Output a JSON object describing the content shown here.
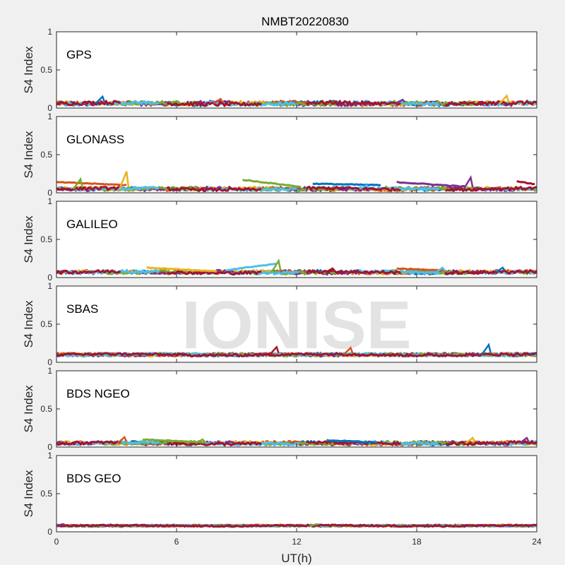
{
  "figure": {
    "title": "NMBT20220830",
    "xlabel": "UT(h)",
    "watermark": "IONISE"
  },
  "colors": {
    "background": "#f0f0f0",
    "axes_bg": "#ffffff",
    "axis_line": "#262626",
    "watermark": "#e3e3e3",
    "series": [
      "#0072bd",
      "#d95319",
      "#edb120",
      "#7e2f8e",
      "#77ac30",
      "#4dbeee",
      "#a2142f"
    ]
  },
  "chart_data": [
    {
      "type": "scatter",
      "panel": "GPS",
      "ylabel": "S4 Index",
      "xlim": [
        0,
        24
      ],
      "ylim": [
        0,
        1
      ],
      "xticks": [
        0,
        6,
        12,
        18,
        24
      ],
      "yticks": [
        0,
        0.5,
        1
      ],
      "baseline": 0.06,
      "spread": 0.03,
      "spikes": [
        [
          2.3,
          0.15
        ],
        [
          8.2,
          0.12
        ],
        [
          22.5,
          0.16
        ],
        [
          17.3,
          0.11
        ]
      ],
      "arcs": []
    },
    {
      "type": "scatter",
      "panel": "GLONASS",
      "ylabel": "S4 Index",
      "xlim": [
        0,
        24
      ],
      "ylim": [
        0,
        1
      ],
      "xticks": [
        0,
        6,
        12,
        18,
        24
      ],
      "yticks": [
        0,
        0.5,
        1
      ],
      "baseline": 0.05,
      "spread": 0.025,
      "spikes": [
        [
          3.5,
          0.28
        ],
        [
          20.7,
          0.2
        ],
        [
          1.2,
          0.18
        ],
        [
          15.5,
          0.1
        ]
      ],
      "arcs": [
        [
          0.0,
          3.6,
          0.14,
          0.1
        ],
        [
          9.3,
          12.2,
          0.17,
          0.08
        ],
        [
          12.8,
          16.2,
          0.12,
          0.1
        ],
        [
          17.0,
          20.5,
          0.14,
          0.08
        ],
        [
          23.0,
          24.0,
          0.15,
          0.11
        ]
      ]
    },
    {
      "type": "scatter",
      "panel": "GALILEO",
      "ylabel": "S4 Index",
      "xlim": [
        0,
        24
      ],
      "ylim": [
        0,
        1
      ],
      "xticks": [
        0,
        6,
        12,
        18,
        24
      ],
      "yticks": [
        0,
        0.5,
        1
      ],
      "baseline": 0.07,
      "spread": 0.025,
      "spikes": [
        [
          11.1,
          0.22
        ],
        [
          19.3,
          0.13
        ],
        [
          13.8,
          0.12
        ],
        [
          22.3,
          0.13
        ]
      ],
      "arcs": [
        [
          4.5,
          8.0,
          0.13,
          0.08
        ],
        [
          8.5,
          11.0,
          0.1,
          0.18
        ],
        [
          17.0,
          19.5,
          0.12,
          0.09
        ]
      ]
    },
    {
      "type": "scatter",
      "panel": "SBAS",
      "ylabel": "S4 Index",
      "xlim": [
        0,
        24
      ],
      "ylim": [
        0,
        1
      ],
      "xticks": [
        0,
        6,
        12,
        18,
        24
      ],
      "yticks": [
        0,
        0.5,
        1
      ],
      "baseline": 0.1,
      "spread": 0.02,
      "spikes": [
        [
          11.0,
          0.2
        ],
        [
          21.6,
          0.23
        ],
        [
          14.7,
          0.19
        ]
      ],
      "arcs": []
    },
    {
      "type": "scatter",
      "panel": "BDS NGEO",
      "ylabel": "S4 Index",
      "xlim": [
        0,
        24
      ],
      "ylim": [
        0,
        1
      ],
      "xticks": [
        0,
        6,
        12,
        18,
        24
      ],
      "yticks": [
        0,
        0.5,
        1
      ],
      "baseline": 0.05,
      "spread": 0.025,
      "spikes": [
        [
          3.4,
          0.13
        ],
        [
          20.8,
          0.12
        ],
        [
          23.5,
          0.12
        ],
        [
          7.3,
          0.1
        ]
      ],
      "arcs": [
        [
          4.3,
          7.5,
          0.1,
          0.06
        ],
        [
          13.5,
          16.0,
          0.09,
          0.06
        ]
      ]
    },
    {
      "type": "scatter",
      "panel": "BDS GEO",
      "ylabel": "S4 Index",
      "xlim": [
        0,
        24
      ],
      "ylim": [
        0,
        1
      ],
      "xticks": [
        0,
        6,
        12,
        18,
        24
      ],
      "yticks": [
        0,
        0.5,
        1
      ],
      "baseline": 0.08,
      "spread": 0.012,
      "spikes": [
        [
          0.3,
          0.1
        ],
        [
          13.0,
          0.1
        ]
      ],
      "arcs": []
    }
  ]
}
